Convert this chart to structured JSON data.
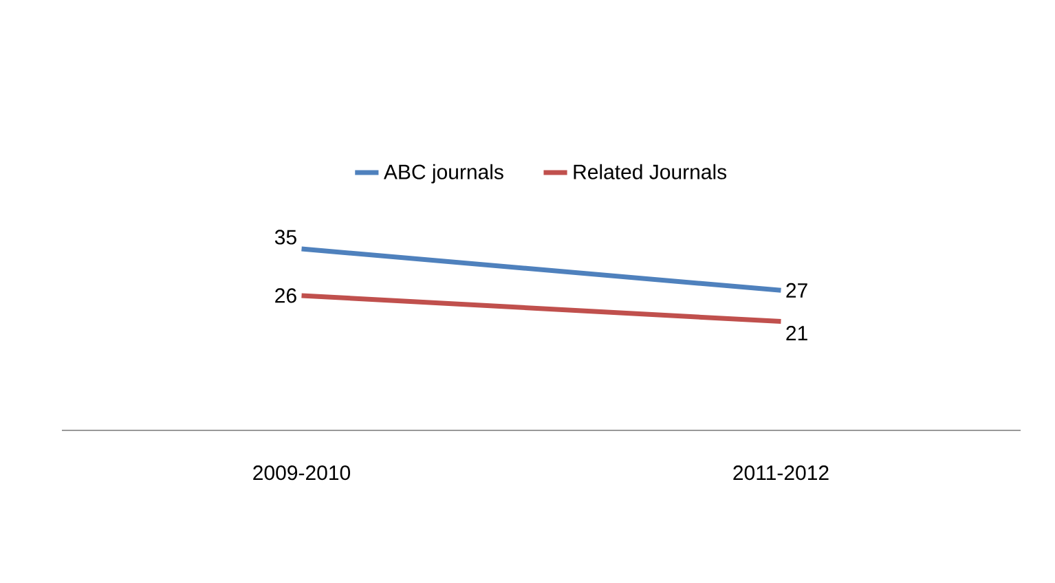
{
  "chart_data": {
    "type": "line",
    "categories": [
      "2009-2010",
      "2011-2012"
    ],
    "series": [
      {
        "name": "ABC journals",
        "color": "#4f81bd",
        "values": [
          35,
          27
        ]
      },
      {
        "name": "Related Journals",
        "color": "#c0504d",
        "values": [
          26,
          21
        ]
      }
    ],
    "data_labels": true,
    "legend": "top",
    "grid": false,
    "marker": "none",
    "line_style": "solid",
    "tick_labels": "x"
  }
}
